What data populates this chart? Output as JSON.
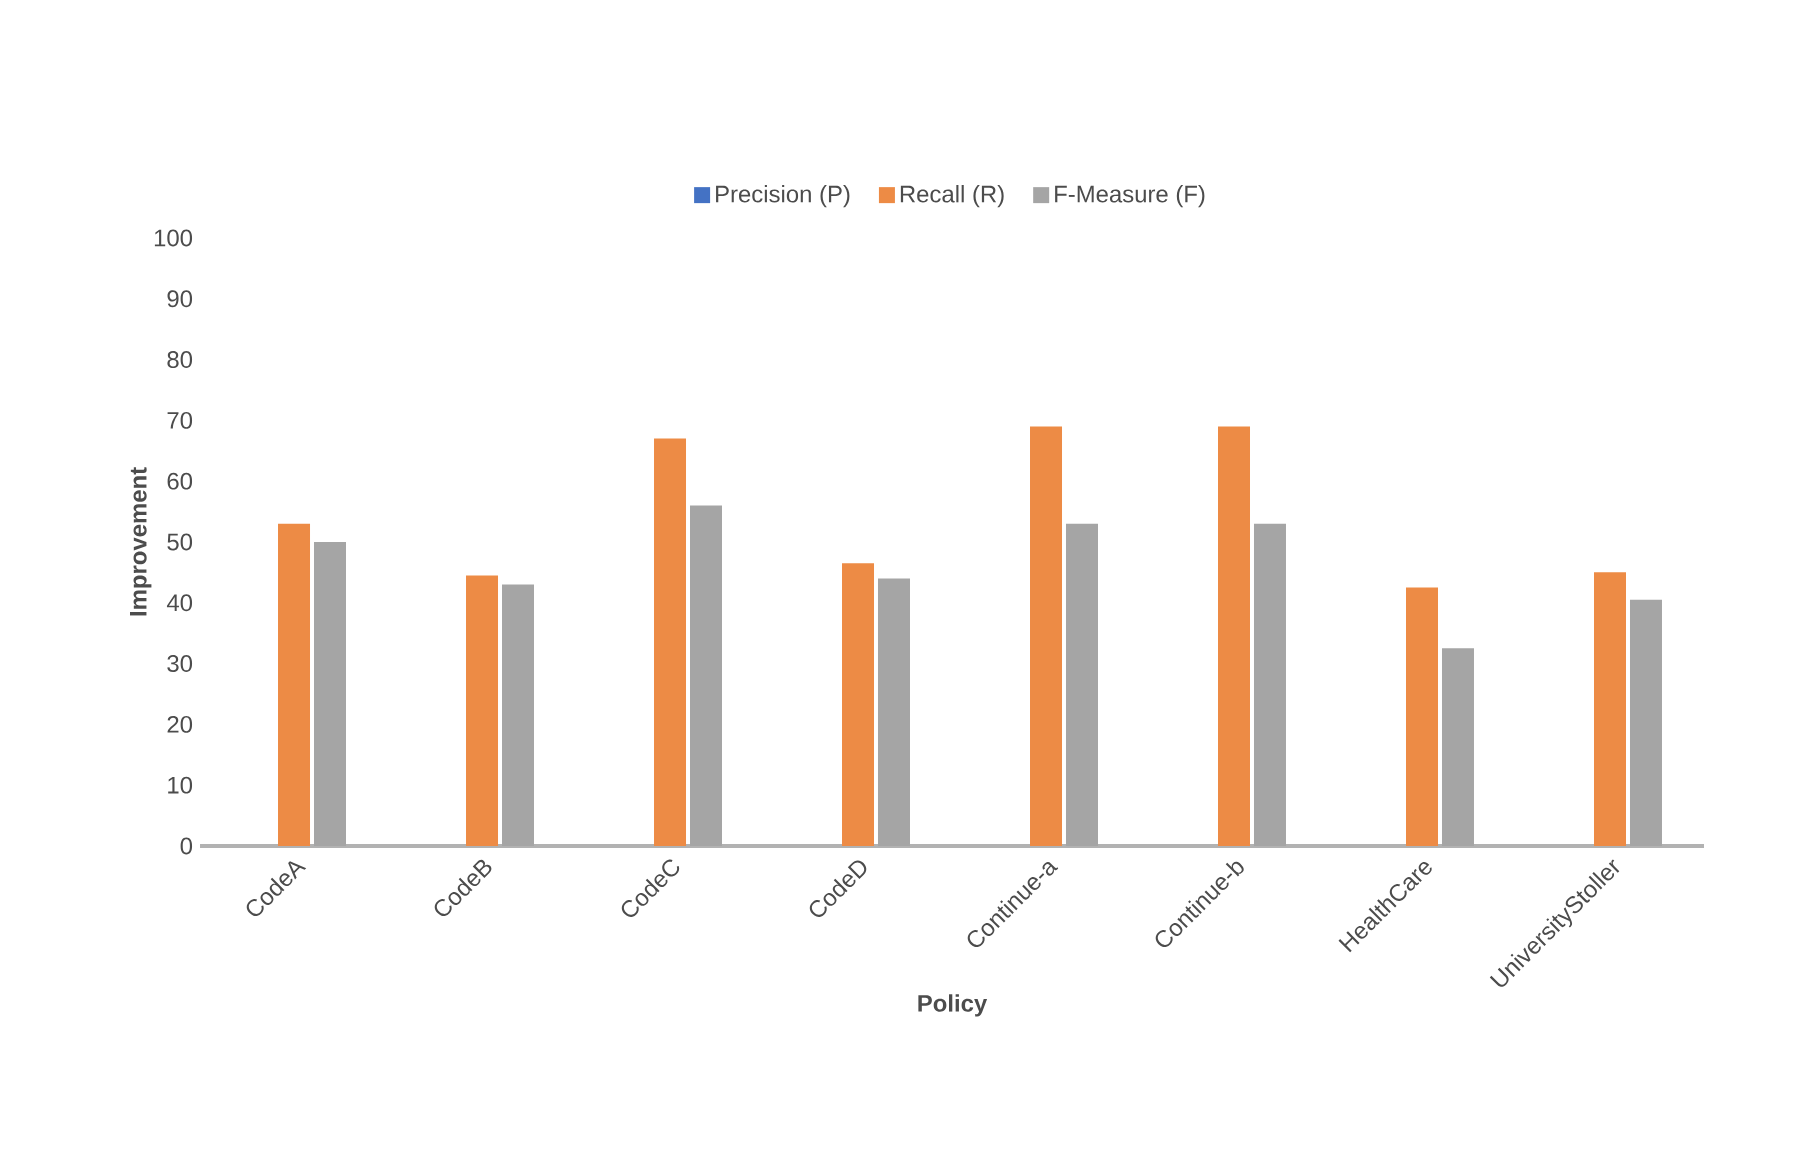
{
  "chart_data": {
    "type": "bar",
    "xlabel": "Policy",
    "ylabel": "Improvement",
    "categories": [
      "CodeA",
      "CodeB",
      "CodeC",
      "CodeD",
      "Continue-a",
      "Continue-b",
      "HealthCare",
      "UniversityStoller"
    ],
    "series": [
      {
        "name": "Precision (P)",
        "color": "#4472c4",
        "values": [
          0,
          0,
          0,
          0,
          0,
          0,
          0,
          0
        ]
      },
      {
        "name": "Recall (R)",
        "color": "#ed8b45",
        "values": [
          53,
          44.5,
          67,
          46.5,
          69,
          69,
          42.5,
          45
        ]
      },
      {
        "name": "F-Measure (F)",
        "color": "#a5a5a5",
        "values": [
          50,
          43,
          56,
          44,
          53,
          53,
          32.5,
          40.5
        ]
      }
    ],
    "ylim": [
      0,
      100
    ],
    "yticks": [
      0,
      10,
      20,
      30,
      40,
      50,
      60,
      70,
      80,
      90,
      100
    ],
    "grid": false,
    "legend": "top"
  }
}
